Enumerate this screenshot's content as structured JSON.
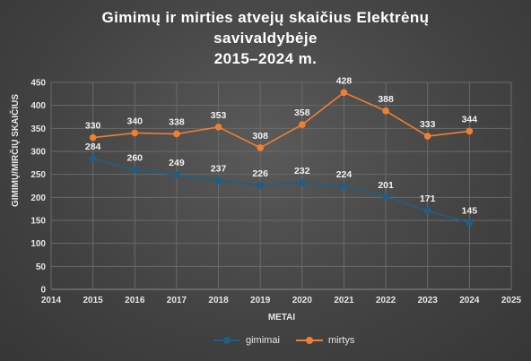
{
  "chart_data": {
    "type": "line",
    "title_lines": [
      "Gimimų ir mirties atvejų skaičius Elektrėnų",
      "savivaldybėje",
      "2015–2024  m."
    ],
    "xlabel": "METAI",
    "ylabel": "GIMIMŲ/MIRČIŲ SKAIČIUS",
    "xlim": [
      2014,
      2025
    ],
    "ylim": [
      0,
      450
    ],
    "x_ticks": [
      2014,
      2015,
      2016,
      2017,
      2018,
      2019,
      2020,
      2021,
      2022,
      2023,
      2024,
      2025
    ],
    "y_ticks": [
      0,
      50,
      100,
      150,
      200,
      250,
      300,
      350,
      400,
      450
    ],
    "grid": true,
    "legend_position": "bottom",
    "x": [
      2015,
      2016,
      2017,
      2018,
      2019,
      2020,
      2021,
      2022,
      2023,
      2024
    ],
    "series": [
      {
        "name": "gimimai",
        "color": "#1f5e86",
        "values": [
          284,
          260,
          249,
          237,
          226,
          232,
          224,
          201,
          171,
          145
        ]
      },
      {
        "name": "mirtys",
        "color": "#f08030",
        "values": [
          330,
          340,
          338,
          353,
          308,
          358,
          428,
          388,
          333,
          344
        ]
      }
    ]
  }
}
